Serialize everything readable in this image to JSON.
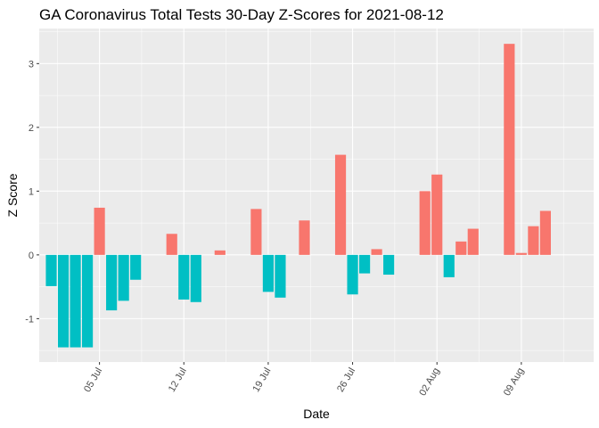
{
  "chart_data": {
    "type": "bar",
    "title": "GA Coronavirus Total Tests 30-Day Z-Scores for 2021-08-12",
    "xlabel": "Date",
    "ylabel": "Z Score",
    "ylim": [
      -1.68,
      3.55
    ],
    "y_ticks": [
      -1,
      0,
      1,
      2,
      3
    ],
    "x_ticks": [
      {
        "label": "05 Jul",
        "date": "2021-07-05"
      },
      {
        "label": "12 Jul",
        "date": "2021-07-12"
      },
      {
        "label": "19 Jul",
        "date": "2021-07-19"
      },
      {
        "label": "26 Jul",
        "date": "2021-07-26"
      },
      {
        "label": "02 Aug",
        "date": "2021-08-02"
      },
      {
        "label": "09 Aug",
        "date": "2021-08-09"
      }
    ],
    "x_range": [
      "2021-06-30",
      "2021-08-15"
    ],
    "colors": {
      "positive": "#f8766d",
      "negative": "#00bfc4",
      "panel": "#ebebeb",
      "grid": "#ffffff"
    },
    "grid": true,
    "legend": "none",
    "series": [
      {
        "date": "2021-07-01",
        "value": -0.49
      },
      {
        "date": "2021-07-02",
        "value": -1.45
      },
      {
        "date": "2021-07-03",
        "value": -1.45
      },
      {
        "date": "2021-07-04",
        "value": -1.45
      },
      {
        "date": "2021-07-05",
        "value": 0.74
      },
      {
        "date": "2021-07-06",
        "value": -0.87
      },
      {
        "date": "2021-07-07",
        "value": -0.72
      },
      {
        "date": "2021-07-08",
        "value": -0.39
      },
      {
        "date": "2021-07-11",
        "value": 0.33
      },
      {
        "date": "2021-07-12",
        "value": -0.7
      },
      {
        "date": "2021-07-13",
        "value": -0.74
      },
      {
        "date": "2021-07-15",
        "value": 0.07
      },
      {
        "date": "2021-07-18",
        "value": 0.72
      },
      {
        "date": "2021-07-19",
        "value": -0.58
      },
      {
        "date": "2021-07-20",
        "value": -0.67
      },
      {
        "date": "2021-07-22",
        "value": 0.54
      },
      {
        "date": "2021-07-25",
        "value": 1.57
      },
      {
        "date": "2021-07-26",
        "value": -0.62
      },
      {
        "date": "2021-07-27",
        "value": -0.29
      },
      {
        "date": "2021-07-28",
        "value": 0.09
      },
      {
        "date": "2021-07-29",
        "value": -0.31
      },
      {
        "date": "2021-08-01",
        "value": 1.0
      },
      {
        "date": "2021-08-02",
        "value": 1.26
      },
      {
        "date": "2021-08-03",
        "value": -0.35
      },
      {
        "date": "2021-08-04",
        "value": 0.21
      },
      {
        "date": "2021-08-05",
        "value": 0.41
      },
      {
        "date": "2021-08-08",
        "value": 3.31
      },
      {
        "date": "2021-08-09",
        "value": 0.03
      },
      {
        "date": "2021-08-10",
        "value": 0.45
      },
      {
        "date": "2021-08-11",
        "value": 0.69
      }
    ]
  }
}
